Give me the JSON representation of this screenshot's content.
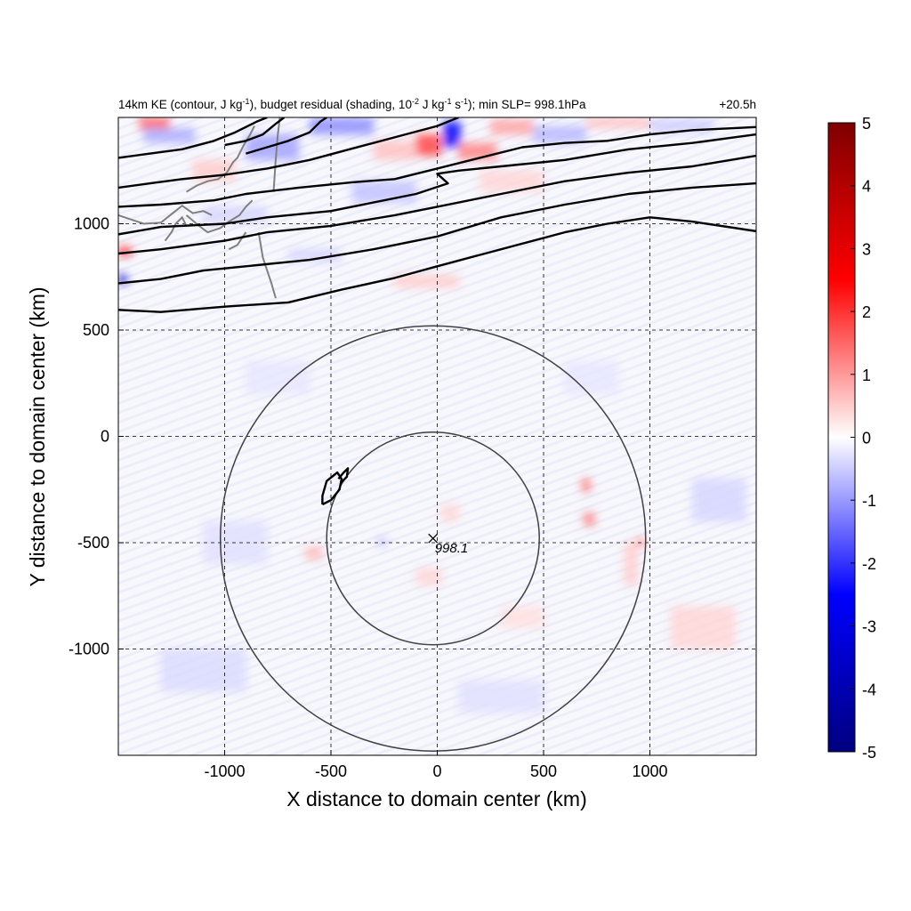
{
  "chart_data": {
    "type": "heatmap",
    "title": {
      "main": "14km KE (contour, J kg",
      "exp1": "-1",
      "mid1": "), budget residual (shading, 10",
      "exp2": "-2",
      "mid2": " J kg",
      "exp3": "-1",
      "mid3": " s",
      "exp4": "-1",
      "end": "); min SLP= 998.1hPa"
    },
    "time_label": "+20.5h",
    "xlabel": "X distance to domain center (km)",
    "ylabel": "Y distance to domain center (km)",
    "xlim": [
      -1500,
      1500
    ],
    "ylim": [
      -1500,
      1500
    ],
    "xticks": [
      -1000,
      -500,
      0,
      500,
      1000
    ],
    "yticks": [
      -1000,
      -500,
      0,
      500,
      1000
    ],
    "grid": true,
    "colorbar": {
      "min": -5,
      "max": 5,
      "ticks": [
        5,
        4,
        3,
        2,
        1,
        0,
        -1,
        -2,
        -3,
        -4,
        -5
      ],
      "colors": [
        "#00007f",
        "#0000ff",
        "#ffffff",
        "#ff0000",
        "#7f0000"
      ],
      "placement": "right"
    },
    "storm_center": {
      "x": -20,
      "y": -480,
      "label": "998.1"
    },
    "radius_circles_km": [
      500,
      1000
    ],
    "ke_contours": [
      [
        [
          -1500,
          595
        ],
        [
          -1300,
          585
        ],
        [
          -1000,
          610
        ],
        [
          -700,
          630
        ],
        [
          -450,
          690
        ],
        [
          -200,
          745
        ],
        [
          0,
          800
        ],
        [
          300,
          880
        ],
        [
          600,
          960
        ],
        [
          800,
          1000
        ],
        [
          1000,
          1030
        ],
        [
          1200,
          1010
        ],
        [
          1500,
          965
        ]
      ],
      [
        [
          -1500,
          720
        ],
        [
          -1300,
          740
        ],
        [
          -1100,
          780
        ],
        [
          -900,
          800
        ],
        [
          -600,
          830
        ],
        [
          -300,
          880
        ],
        [
          0,
          940
        ],
        [
          300,
          1030
        ],
        [
          600,
          1090
        ],
        [
          900,
          1140
        ],
        [
          1200,
          1170
        ],
        [
          1500,
          1190
        ]
      ],
      [
        [
          -1500,
          860
        ],
        [
          -1300,
          880
        ],
        [
          -1000,
          920
        ],
        [
          -800,
          960
        ],
        [
          -500,
          990
        ],
        [
          -200,
          1040
        ],
        [
          0,
          1080
        ],
        [
          300,
          1140
        ],
        [
          600,
          1200
        ],
        [
          900,
          1240
        ],
        [
          1200,
          1270
        ],
        [
          1500,
          1320
        ]
      ],
      [
        [
          -1500,
          950
        ],
        [
          -1300,
          985
        ],
        [
          -1000,
          1000
        ],
        [
          -800,
          1030
        ],
        [
          -500,
          1060
        ],
        [
          -300,
          1100
        ],
        [
          -100,
          1140
        ],
        [
          50,
          1190
        ],
        [
          0,
          1235
        ],
        [
          100,
          1250
        ],
        [
          300,
          1270
        ],
        [
          600,
          1300
        ],
        [
          900,
          1350
        ],
        [
          1200,
          1380
        ],
        [
          1500,
          1420
        ]
      ],
      [
        [
          -1500,
          1080
        ],
        [
          -1300,
          1090
        ],
        [
          -1050,
          1110
        ],
        [
          -900,
          1140
        ],
        [
          -650,
          1170
        ],
        [
          -400,
          1195
        ],
        [
          -200,
          1210
        ],
        [
          0,
          1260
        ],
        [
          200,
          1310
        ],
        [
          400,
          1360
        ],
        [
          600,
          1380
        ],
        [
          800,
          1390
        ],
        [
          1000,
          1420
        ],
        [
          1200,
          1440
        ],
        [
          1500,
          1455
        ]
      ],
      [
        [
          -1500,
          1170
        ],
        [
          -1350,
          1190
        ],
        [
          -1200,
          1210
        ],
        [
          -1000,
          1230
        ],
        [
          -800,
          1260
        ],
        [
          -600,
          1300
        ],
        [
          -450,
          1340
        ],
        [
          -300,
          1380
        ],
        [
          -150,
          1420
        ],
        [
          0,
          1460
        ],
        [
          100,
          1500
        ]
      ],
      [
        [
          -1500,
          1310
        ],
        [
          -1350,
          1330
        ],
        [
          -1200,
          1350
        ],
        [
          -1050,
          1390
        ],
        [
          -950,
          1430
        ],
        [
          -850,
          1480
        ],
        [
          -800,
          1500
        ]
      ],
      [
        [
          -1000,
          1370
        ],
        [
          -900,
          1390
        ],
        [
          -820,
          1420
        ],
        [
          -760,
          1470
        ],
        [
          -720,
          1500
        ]
      ],
      [
        [
          -900,
          1330
        ],
        [
          -800,
          1360
        ],
        [
          -700,
          1390
        ],
        [
          -600,
          1430
        ],
        [
          -550,
          1480
        ],
        [
          -520,
          1500
        ]
      ],
      [
        [
          -540,
          -320
        ],
        [
          -500,
          -300
        ],
        [
          -460,
          -250
        ],
        [
          -450,
          -200
        ],
        [
          -470,
          -170
        ],
        [
          -520,
          -210
        ],
        [
          -540,
          -280
        ],
        [
          -540,
          -320
        ]
      ],
      [
        [
          -465,
          -200
        ],
        [
          -440,
          -170
        ],
        [
          -420,
          -150
        ],
        [
          -425,
          -190
        ],
        [
          -450,
          -215
        ]
      ]
    ],
    "coastlines": [
      [
        [
          -1500,
          1040
        ],
        [
          -1380,
          1000
        ],
        [
          -1300,
          1005
        ],
        [
          -1250,
          1045
        ],
        [
          -1200,
          1085
        ],
        [
          -1150,
          1050
        ],
        [
          -1100,
          1060
        ],
        [
          -1060,
          1040
        ]
      ],
      [
        [
          -1280,
          920
        ],
        [
          -1250,
          960
        ],
        [
          -1230,
          1000
        ],
        [
          -1200,
          1030
        ],
        [
          -1180,
          990
        ]
      ],
      [
        [
          -1180,
          1040
        ],
        [
          -1120,
          990
        ],
        [
          -1080,
          960
        ],
        [
          -1020,
          980
        ],
        [
          -980,
          1010
        ],
        [
          -930,
          1040
        ],
        [
          -900,
          1080
        ],
        [
          -870,
          1110
        ]
      ],
      [
        [
          -1180,
          1150
        ],
        [
          -1130,
          1180
        ],
        [
          -1080,
          1200
        ],
        [
          -1030,
          1210
        ],
        [
          -990,
          1240
        ],
        [
          -960,
          1290
        ],
        [
          -940,
          1310
        ],
        [
          -910,
          1370
        ],
        [
          -880,
          1420
        ],
        [
          -860,
          1460
        ]
      ],
      [
        [
          -980,
          880
        ],
        [
          -940,
          900
        ],
        [
          -920,
          930
        ],
        [
          -900,
          960
        ]
      ],
      [
        [
          -770,
          1150
        ],
        [
          -760,
          1300
        ],
        [
          -750,
          1420
        ],
        [
          -740,
          1500
        ]
      ],
      [
        [
          -840,
          960
        ],
        [
          -820,
          840
        ],
        [
          -780,
          720
        ],
        [
          -760,
          650
        ]
      ]
    ],
    "residual_patches": [
      {
        "x": -1400,
        "y": 1440,
        "w": 140,
        "h": 60,
        "v": 1.6
      },
      {
        "x": -1380,
        "y": 1380,
        "w": 240,
        "h": 70,
        "v": -0.8
      },
      {
        "x": -1150,
        "y": 1200,
        "w": 200,
        "h": 100,
        "v": 0.5
      },
      {
        "x": -900,
        "y": 1300,
        "w": 250,
        "h": 120,
        "v": -0.9
      },
      {
        "x": -600,
        "y": 1420,
        "w": 300,
        "h": 80,
        "v": -1.1
      },
      {
        "x": -300,
        "y": 1300,
        "w": 200,
        "h": 90,
        "v": 0.6
      },
      {
        "x": -100,
        "y": 1320,
        "w": 120,
        "h": 100,
        "v": 1.8
      },
      {
        "x": 30,
        "y": 1360,
        "w": 80,
        "h": 120,
        "v": -2.6
      },
      {
        "x": 100,
        "y": 1300,
        "w": 180,
        "h": 80,
        "v": 1.2
      },
      {
        "x": 250,
        "y": 1420,
        "w": 200,
        "h": 70,
        "v": 0.9
      },
      {
        "x": 450,
        "y": 1380,
        "w": 250,
        "h": 80,
        "v": -0.7
      },
      {
        "x": 700,
        "y": 1450,
        "w": 300,
        "h": 50,
        "v": 0.6
      },
      {
        "x": 1000,
        "y": 1430,
        "w": 300,
        "h": 60,
        "v": -0.5
      },
      {
        "x": -1500,
        "y": 850,
        "w": 60,
        "h": 40,
        "v": 2.2
      },
      {
        "x": -1500,
        "y": 720,
        "w": 40,
        "h": 40,
        "v": -3.5
      },
      {
        "x": -1100,
        "y": 1000,
        "w": 300,
        "h": 80,
        "v": -0.4
      },
      {
        "x": -400,
        "y": 1100,
        "w": 300,
        "h": 100,
        "v": -0.6
      },
      {
        "x": 200,
        "y": 1150,
        "w": 300,
        "h": 100,
        "v": 0.4
      },
      {
        "x": -200,
        "y": 700,
        "w": 300,
        "h": 60,
        "v": 0.5
      },
      {
        "x": -700,
        "y": 820,
        "w": 250,
        "h": 60,
        "v": -0.4
      },
      {
        "x": 680,
        "y": -260,
        "w": 40,
        "h": 60,
        "v": 1.4
      },
      {
        "x": 690,
        "y": -420,
        "w": 50,
        "h": 60,
        "v": 1.3
      },
      {
        "x": 940,
        "y": -520,
        "w": 30,
        "h": 40,
        "v": 1.5
      },
      {
        "x": 880,
        "y": -700,
        "w": 60,
        "h": 200,
        "v": 0.5
      },
      {
        "x": -620,
        "y": -580,
        "w": 80,
        "h": 60,
        "v": 0.7
      },
      {
        "x": -280,
        "y": -510,
        "w": 40,
        "h": 30,
        "v": -0.8
      },
      {
        "x": 20,
        "y": -400,
        "w": 80,
        "h": 80,
        "v": 0.4
      },
      {
        "x": -100,
        "y": -700,
        "w": 120,
        "h": 80,
        "v": 0.4
      },
      {
        "x": 300,
        "y": -900,
        "w": 200,
        "h": 100,
        "v": 0.3
      },
      {
        "x": 1100,
        "y": -1000,
        "w": 300,
        "h": 200,
        "v": 0.4
      },
      {
        "x": -1300,
        "y": -1200,
        "w": 400,
        "h": 200,
        "v": -0.35
      },
      {
        "x": -1100,
        "y": -600,
        "w": 300,
        "h": 200,
        "v": -0.3
      },
      {
        "x": 1200,
        "y": -400,
        "w": 250,
        "h": 200,
        "v": -0.4
      },
      {
        "x": 600,
        "y": 200,
        "w": 250,
        "h": 150,
        "v": -0.25
      },
      {
        "x": -900,
        "y": 200,
        "w": 300,
        "h": 150,
        "v": -0.25
      },
      {
        "x": 100,
        "y": -1300,
        "w": 400,
        "h": 150,
        "v": -0.3
      }
    ]
  }
}
